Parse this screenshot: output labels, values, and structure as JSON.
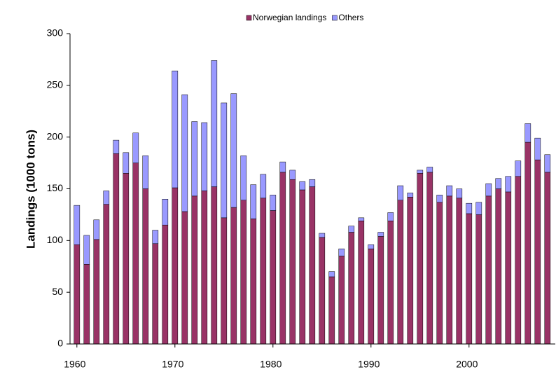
{
  "chart_data": {
    "type": "stacked_bar",
    "y_label": "Landings (1000 tons)",
    "x": [
      1960,
      1961,
      1962,
      1963,
      1964,
      1965,
      1966,
      1967,
      1968,
      1969,
      1970,
      1971,
      1972,
      1973,
      1974,
      1975,
      1976,
      1977,
      1978,
      1979,
      1980,
      1981,
      1982,
      1983,
      1984,
      1985,
      1986,
      1987,
      1988,
      1989,
      1990,
      1991,
      1992,
      1993,
      1994,
      1995,
      1996,
      1997,
      1998,
      1999,
      2000,
      2001,
      2002,
      2003,
      2004,
      2005,
      2006,
      2007,
      2008
    ],
    "series": [
      {
        "name": "Norwegian landings",
        "color": "#993366",
        "values": [
          96,
          77,
          101,
          135,
          184,
          165,
          175,
          150,
          97,
          115,
          151,
          128,
          143,
          148,
          152,
          122,
          132,
          139,
          121,
          141,
          129,
          166,
          159,
          149,
          152,
          103,
          65,
          85,
          108,
          119,
          92,
          104,
          119,
          139,
          142,
          165,
          166,
          137,
          143,
          141,
          126,
          125,
          143,
          150,
          147,
          162,
          195,
          178,
          166
        ]
      },
      {
        "name": "Others",
        "color": "#9999ff",
        "values": [
          38,
          28,
          19,
          13,
          13,
          20,
          29,
          32,
          13,
          25,
          113,
          113,
          72,
          66,
          122,
          111,
          110,
          43,
          33,
          23,
          15,
          10,
          9,
          8,
          7,
          4,
          5,
          7,
          6,
          3,
          4,
          4,
          8,
          14,
          4,
          3,
          5,
          7,
          10,
          9,
          10,
          12,
          12,
          10,
          15,
          15,
          18,
          21,
          17
        ]
      }
    ],
    "xlim": [
      1959.3,
      2008.8
    ],
    "xticks": [
      1960,
      1970,
      1980,
      1990,
      2000
    ],
    "ylim": [
      0,
      300
    ],
    "yticks": [
      0,
      50,
      100,
      150,
      200,
      250,
      300
    ],
    "legend": "top"
  }
}
